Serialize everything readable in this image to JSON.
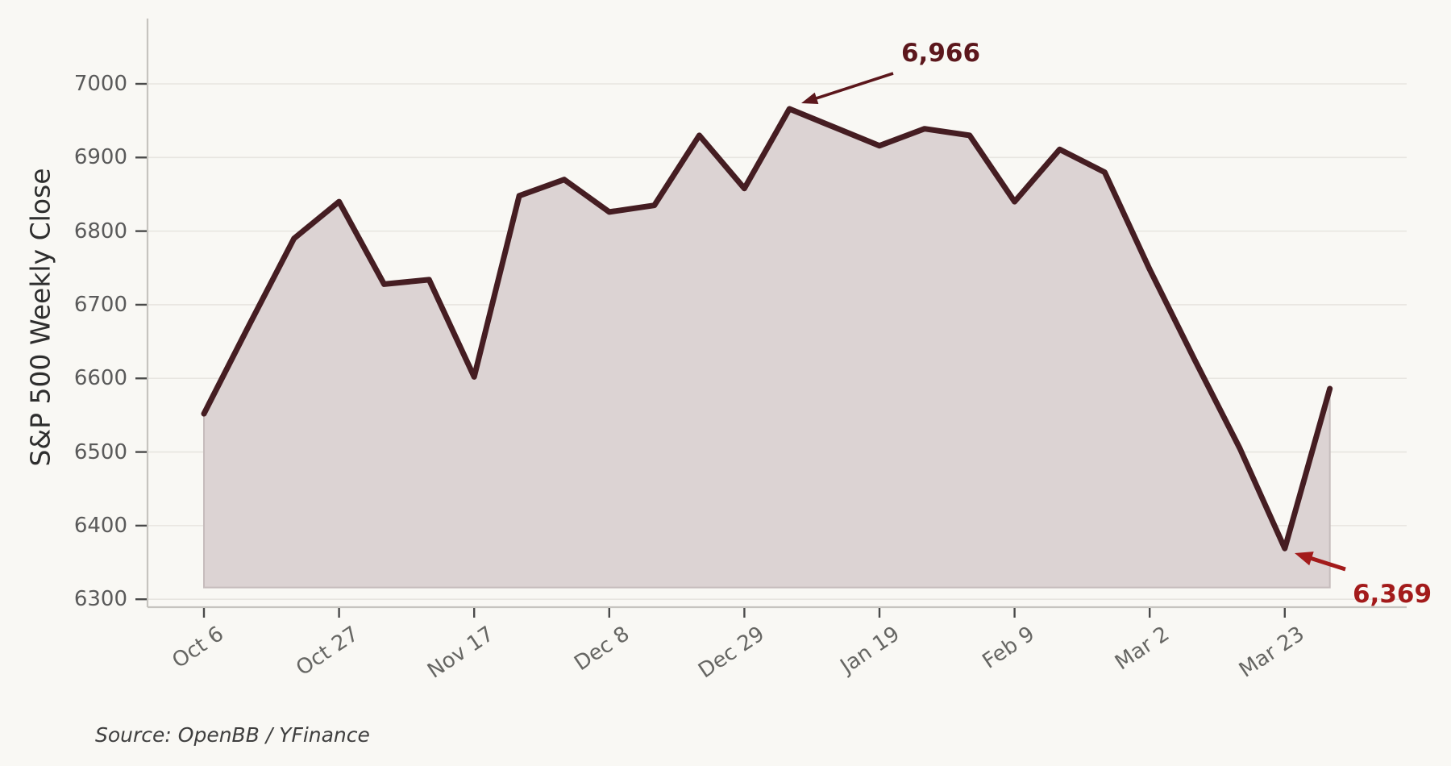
{
  "chart_data": {
    "type": "area",
    "title": "",
    "ylabel": "S&P 500 Weekly Close",
    "xlabel": "",
    "source": "Source: OpenBB / YFinance",
    "grid": "horizontal-only",
    "legend": "none",
    "ylim": [
      6290,
      7090
    ],
    "y_ticks": [
      6300,
      6400,
      6500,
      6600,
      6700,
      6800,
      6900,
      7000
    ],
    "x_tick_labels": [
      "Oct 6",
      "Oct 27",
      "Nov 17",
      "Dec 8",
      "Dec 29",
      "Jan 19",
      "Feb 9",
      "Mar 2",
      "Mar 23"
    ],
    "x_weeks": [
      "Oct 6",
      "Oct 13",
      "Oct 20",
      "Oct 27",
      "Nov 3",
      "Nov 10",
      "Nov 17",
      "Nov 24",
      "Dec 1",
      "Dec 8",
      "Dec 15",
      "Dec 22",
      "Dec 29",
      "Jan 5",
      "Jan 12",
      "Jan 19",
      "Jan 26",
      "Feb 2",
      "Feb 9",
      "Feb 16",
      "Feb 23",
      "Mar 2",
      "Mar 9",
      "Mar 16",
      "Mar 23",
      "Mar 30"
    ],
    "values": [
      6552,
      6672,
      6790,
      6840,
      6728,
      6734,
      6602,
      6848,
      6870,
      6826,
      6835,
      6930,
      6858,
      6966,
      6941,
      6916,
      6939,
      6930,
      6840,
      6911,
      6880,
      6748,
      6625,
      6505,
      6369,
      6586
    ],
    "annotations": [
      {
        "label": "6,966",
        "value": 6966,
        "week": "Jan 5",
        "week_index": 13
      },
      {
        "label": "6,369",
        "value": 6369,
        "week": "Mar 23",
        "week_index": 24
      }
    ],
    "colors": {
      "background": "#f9f8f4",
      "line": "#451d22",
      "fill": "#dcd3d3",
      "fill_edge": "#c6bcbc",
      "grid": "#e7e5e0",
      "spine": "#c6c4bf",
      "tick": "#4a4a4a",
      "annotation_peak": "#5c171c",
      "annotation_trough": "#a31b1b"
    }
  }
}
